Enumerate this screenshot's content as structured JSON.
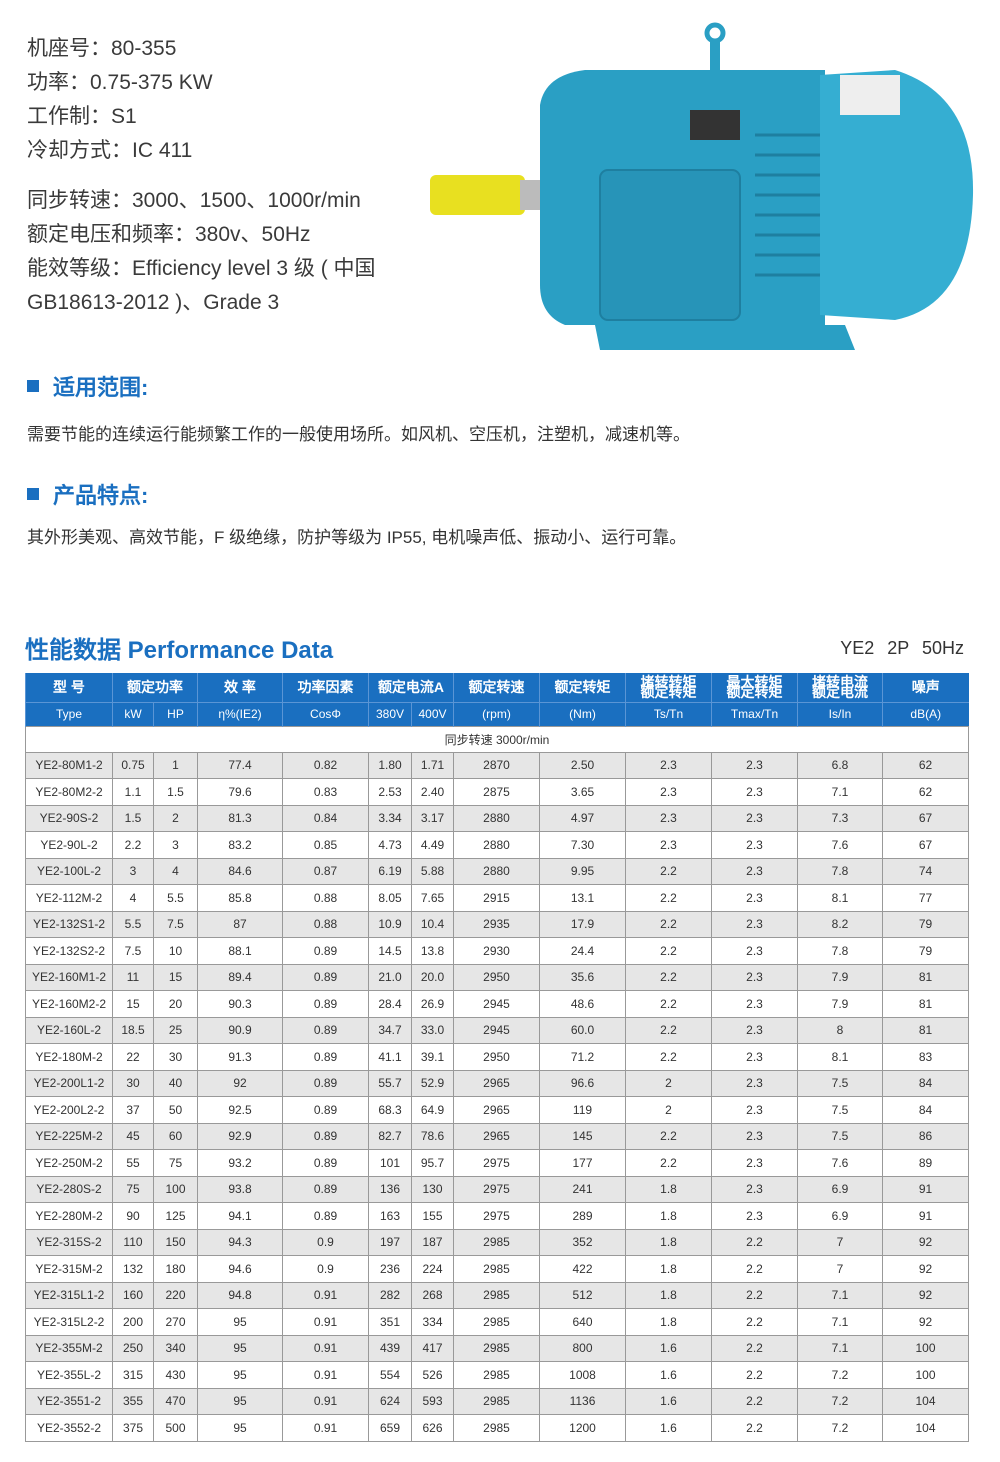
{
  "specs": [
    "机座号：80-355",
    "功率：0.75-375 KW",
    "工作制：S1",
    "冷却方式：IC 411"
  ],
  "specs2": [
    "同步转速：3000、1500、1000r/min",
    "额定电压和频率：380v、50Hz",
    "能效等级：Efficiency level 3 级 ( 中国",
    "GB18613-2012 )、Grade 3"
  ],
  "scope": {
    "title": "适用范围:",
    "text": "需要节能的连续运行能频繁工作的一般使用场所。如风机、空压机，注塑机，减速机等。"
  },
  "features": {
    "title": "产品特点:",
    "text": "其外形美观、高效节能，F 级绝缘，防护等级为 IP55, 电机噪声低、振动小、运行可靠。"
  },
  "perf": {
    "title": "性能数据 Performance Data",
    "subtitle": "YE2 2P   50Hz"
  },
  "colors": {
    "accent": "#1a6fc0",
    "motor": "#2a9fc4",
    "shaft": "#e8e020"
  },
  "table": {
    "h1": {
      "type": "型 号",
      "power": "额定功率",
      "eff": "效 率",
      "pf": "功率因素",
      "current": "额定电流A",
      "speed": "额定转速",
      "torque": "额定转矩",
      "ts": "堵转转矩\n额定转矩",
      "tmax": "最大转矩\n额定转矩",
      "is": "堵转电流\n额定电流",
      "noise": "噪声"
    },
    "h2": [
      "Type",
      "kW",
      "HP",
      "η%(IE2)",
      "CosΦ",
      "380V",
      "400V",
      "(rpm)",
      "(Nm)",
      "Ts/Tn",
      "Tmax/Tn",
      "Is/In",
      "dB(A)"
    ],
    "sync": "同步转速  3000r/min",
    "rows": [
      [
        "YE2-80M1-2",
        "0.75",
        "1",
        "77.4",
        "0.82",
        "1.80",
        "1.71",
        "2870",
        "2.50",
        "2.3",
        "2.3",
        "6.8",
        "62"
      ],
      [
        "YE2-80M2-2",
        "1.1",
        "1.5",
        "79.6",
        "0.83",
        "2.53",
        "2.40",
        "2875",
        "3.65",
        "2.3",
        "2.3",
        "7.1",
        "62"
      ],
      [
        "YE2-90S-2",
        "1.5",
        "2",
        "81.3",
        "0.84",
        "3.34",
        "3.17",
        "2880",
        "4.97",
        "2.3",
        "2.3",
        "7.3",
        "67"
      ],
      [
        "YE2-90L-2",
        "2.2",
        "3",
        "83.2",
        "0.85",
        "4.73",
        "4.49",
        "2880",
        "7.30",
        "2.3",
        "2.3",
        "7.6",
        "67"
      ],
      [
        "YE2-100L-2",
        "3",
        "4",
        "84.6",
        "0.87",
        "6.19",
        "5.88",
        "2880",
        "9.95",
        "2.2",
        "2.3",
        "7.8",
        "74"
      ],
      [
        "YE2-112M-2",
        "4",
        "5.5",
        "85.8",
        "0.88",
        "8.05",
        "7.65",
        "2915",
        "13.1",
        "2.2",
        "2.3",
        "8.1",
        "77"
      ],
      [
        "YE2-132S1-2",
        "5.5",
        "7.5",
        "87",
        "0.88",
        "10.9",
        "10.4",
        "2935",
        "17.9",
        "2.2",
        "2.3",
        "8.2",
        "79"
      ],
      [
        "YE2-132S2-2",
        "7.5",
        "10",
        "88.1",
        "0.89",
        "14.5",
        "13.8",
        "2930",
        "24.4",
        "2.2",
        "2.3",
        "7.8",
        "79"
      ],
      [
        "YE2-160M1-2",
        "11",
        "15",
        "89.4",
        "0.89",
        "21.0",
        "20.0",
        "2950",
        "35.6",
        "2.2",
        "2.3",
        "7.9",
        "81"
      ],
      [
        "YE2-160M2-2",
        "15",
        "20",
        "90.3",
        "0.89",
        "28.4",
        "26.9",
        "2945",
        "48.6",
        "2.2",
        "2.3",
        "7.9",
        "81"
      ],
      [
        "YE2-160L-2",
        "18.5",
        "25",
        "90.9",
        "0.89",
        "34.7",
        "33.0",
        "2945",
        "60.0",
        "2.2",
        "2.3",
        "8",
        "81"
      ],
      [
        "YE2-180M-2",
        "22",
        "30",
        "91.3",
        "0.89",
        "41.1",
        "39.1",
        "2950",
        "71.2",
        "2.2",
        "2.3",
        "8.1",
        "83"
      ],
      [
        "YE2-200L1-2",
        "30",
        "40",
        "92",
        "0.89",
        "55.7",
        "52.9",
        "2965",
        "96.6",
        "2",
        "2.3",
        "7.5",
        "84"
      ],
      [
        "YE2-200L2-2",
        "37",
        "50",
        "92.5",
        "0.89",
        "68.3",
        "64.9",
        "2965",
        "119",
        "2",
        "2.3",
        "7.5",
        "84"
      ],
      [
        "YE2-225M-2",
        "45",
        "60",
        "92.9",
        "0.89",
        "82.7",
        "78.6",
        "2965",
        "145",
        "2.2",
        "2.3",
        "7.5",
        "86"
      ],
      [
        "YE2-250M-2",
        "55",
        "75",
        "93.2",
        "0.89",
        "101",
        "95.7",
        "2975",
        "177",
        "2.2",
        "2.3",
        "7.6",
        "89"
      ],
      [
        "YE2-280S-2",
        "75",
        "100",
        "93.8",
        "0.89",
        "136",
        "130",
        "2975",
        "241",
        "1.8",
        "2.3",
        "6.9",
        "91"
      ],
      [
        "YE2-280M-2",
        "90",
        "125",
        "94.1",
        "0.89",
        "163",
        "155",
        "2975",
        "289",
        "1.8",
        "2.3",
        "6.9",
        "91"
      ],
      [
        "YE2-315S-2",
        "110",
        "150",
        "94.3",
        "0.9",
        "197",
        "187",
        "2985",
        "352",
        "1.8",
        "2.2",
        "7",
        "92"
      ],
      [
        "YE2-315M-2",
        "132",
        "180",
        "94.6",
        "0.9",
        "236",
        "224",
        "2985",
        "422",
        "1.8",
        "2.2",
        "7",
        "92"
      ],
      [
        "YE2-315L1-2",
        "160",
        "220",
        "94.8",
        "0.91",
        "282",
        "268",
        "2985",
        "512",
        "1.8",
        "2.2",
        "7.1",
        "92"
      ],
      [
        "YE2-315L2-2",
        "200",
        "270",
        "95",
        "0.91",
        "351",
        "334",
        "2985",
        "640",
        "1.8",
        "2.2",
        "7.1",
        "92"
      ],
      [
        "YE2-355M-2",
        "250",
        "340",
        "95",
        "0.91",
        "439",
        "417",
        "2985",
        "800",
        "1.6",
        "2.2",
        "7.1",
        "100"
      ],
      [
        "YE2-355L-2",
        "315",
        "430",
        "95",
        "0.91",
        "554",
        "526",
        "2985",
        "1008",
        "1.6",
        "2.2",
        "7.2",
        "100"
      ],
      [
        "YE2-3551-2",
        "355",
        "470",
        "95",
        "0.91",
        "624",
        "593",
        "2985",
        "1136",
        "1.6",
        "2.2",
        "7.2",
        "104"
      ],
      [
        "YE2-3552-2",
        "375",
        "500",
        "95",
        "0.91",
        "659",
        "626",
        "2985",
        "1200",
        "1.6",
        "2.2",
        "7.2",
        "104"
      ]
    ]
  }
}
